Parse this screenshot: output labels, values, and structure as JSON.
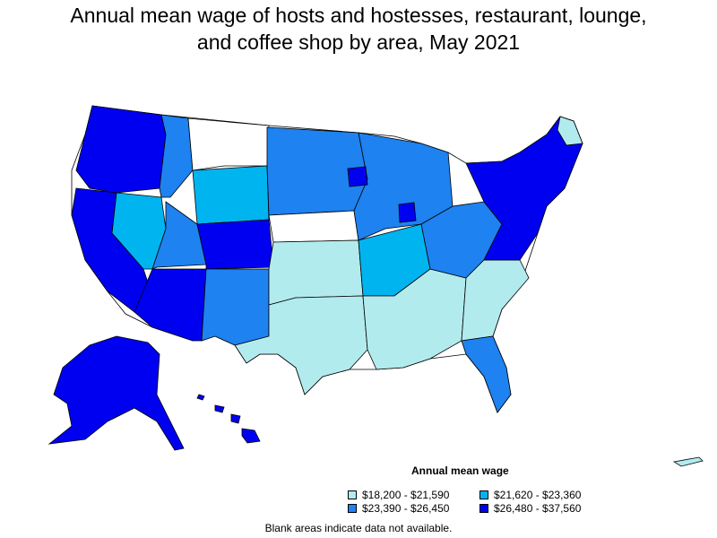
{
  "title": {
    "line1": "Annual mean wage of hosts and hostesses, restaurant, lounge,",
    "line2": "and coffee shop by area, May 2021"
  },
  "legend": {
    "title": "Annual mean wage",
    "items": [
      {
        "label": "$18,200 - $21,590",
        "color": "#b2ebee"
      },
      {
        "label": "$21,620 - $23,360",
        "color": "#00b4f0"
      },
      {
        "label": "$23,390 - $26,450",
        "color": "#1e82f0"
      },
      {
        "label": "$26,480 - $37,560",
        "color": "#0000f0"
      }
    ]
  },
  "note": "Blank areas indicate data not available.",
  "colors": {
    "blank": "#ffffff",
    "border": "#000000"
  }
}
